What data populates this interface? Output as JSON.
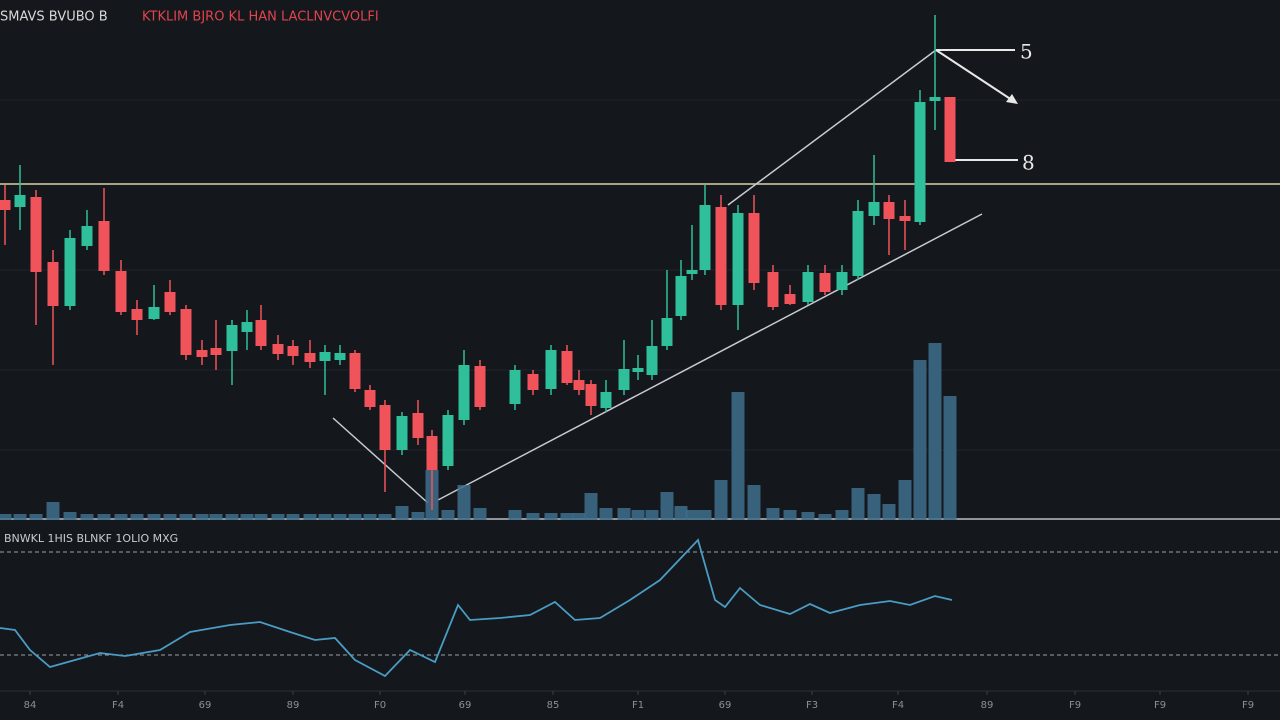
{
  "chart_data": {
    "type": "candlestick",
    "title": "SMAVS BVUBO B",
    "subtitle": "KTKLIM BJRO KL HAN LACLNVCVOLFI",
    "indicator_title": "BNWKL 1HIS BLNKF 1OLIO MXG",
    "annotations": [
      "5",
      "8"
    ],
    "up_color": "#2fbf9a",
    "down_color": "#f0535a",
    "volume_color": "#3e6e8c",
    "indicator_color": "#4a9cc4",
    "xlim": [
      0,
      1280
    ],
    "ylim": [
      0,
      520
    ],
    "x": [
      5,
      20,
      36,
      53,
      70,
      87,
      104,
      121,
      137,
      154,
      170,
      186,
      202,
      216,
      232,
      247,
      261,
      278,
      293,
      310,
      325,
      340,
      355,
      370,
      385,
      402,
      418,
      432,
      448,
      464,
      480,
      515,
      533,
      551,
      567,
      579,
      591,
      606,
      624,
      638,
      652,
      667,
      681,
      692,
      705,
      721,
      738,
      754,
      773,
      790,
      808,
      825,
      842,
      858,
      874,
      889,
      905,
      920,
      935,
      950
    ],
    "open": [
      320,
      313,
      323,
      258,
      214,
      274,
      299,
      249,
      211,
      201,
      228,
      211,
      170,
      172,
      169,
      188,
      200,
      176,
      174,
      167,
      159,
      160,
      167,
      130,
      115,
      70,
      107,
      84,
      54,
      100,
      154,
      116,
      146,
      131,
      169,
      140,
      136,
      112,
      130,
      148,
      145,
      174,
      204,
      246,
      250,
      313,
      215,
      307,
      248,
      226,
      218,
      247,
      230,
      244,
      304,
      318,
      304,
      298,
      419,
      423
    ],
    "high": [
      335,
      355,
      330,
      270,
      290,
      310,
      332,
      260,
      220,
      235,
      240,
      215,
      180,
      200,
      200,
      210,
      215,
      185,
      180,
      180,
      175,
      175,
      170,
      135,
      120,
      108,
      120,
      90,
      110,
      170,
      160,
      155,
      150,
      175,
      175,
      150,
      140,
      140,
      180,
      165,
      200,
      250,
      260,
      295,
      335,
      325,
      315,
      325,
      255,
      235,
      255,
      255,
      255,
      320,
      365,
      325,
      320,
      430,
      505,
      423
    ],
    "low": [
      275,
      290,
      195,
      155,
      210,
      270,
      245,
      205,
      185,
      200,
      205,
      160,
      155,
      150,
      135,
      170,
      170,
      160,
      155,
      152,
      125,
      155,
      128,
      110,
      28,
      65,
      75,
      10,
      50,
      95,
      110,
      110,
      125,
      125,
      135,
      125,
      105,
      108,
      125,
      140,
      140,
      170,
      200,
      240,
      245,
      210,
      190,
      230,
      210,
      215,
      215,
      225,
      225,
      240,
      295,
      265,
      270,
      295,
      390,
      358
    ],
    "close": [
      310,
      325,
      248,
      214,
      282,
      294,
      249,
      208,
      200,
      213,
      208,
      165,
      163,
      165,
      195,
      198,
      174,
      166,
      164,
      158,
      168,
      167,
      131,
      113,
      70,
      104,
      82,
      50,
      105,
      155,
      113,
      150,
      130,
      170,
      137,
      130,
      114,
      128,
      151,
      152,
      174,
      202,
      244,
      250,
      315,
      215,
      307,
      237,
      213,
      216,
      248,
      228,
      248,
      309,
      318,
      301,
      299,
      418,
      423,
      358
    ],
    "volume": [
      6,
      6,
      6,
      18,
      8,
      6,
      6,
      6,
      6,
      6,
      6,
      6,
      6,
      6,
      6,
      6,
      6,
      6,
      6,
      6,
      6,
      6,
      6,
      6,
      6,
      14,
      8,
      50,
      10,
      35,
      12,
      10,
      7,
      7,
      7,
      7,
      27,
      12,
      12,
      10,
      10,
      28,
      14,
      10,
      10,
      40,
      128,
      35,
      12,
      10,
      8,
      6,
      10,
      32,
      26,
      16,
      40,
      160,
      177,
      124
    ],
    "indicator": {
      "ylim": [
        0,
        170
      ],
      "levels": [
        138,
        35
      ],
      "x": [
        0,
        15,
        30,
        50,
        75,
        100,
        125,
        160,
        190,
        230,
        260,
        290,
        315,
        335,
        355,
        385,
        410,
        435,
        458,
        470,
        500,
        530,
        555,
        575,
        600,
        630,
        660,
        698,
        715,
        725,
        740,
        760,
        790,
        810,
        830,
        860,
        890,
        910,
        935,
        952
      ],
      "values": [
        62,
        60,
        40,
        23,
        30,
        37,
        34,
        40,
        58,
        65,
        68,
        58,
        50,
        52,
        30,
        14,
        40,
        28,
        85,
        70,
        72,
        75,
        88,
        70,
        72,
        90,
        110,
        150,
        90,
        83,
        102,
        85,
        76,
        86,
        77,
        85,
        89,
        85,
        94,
        90
      ]
    },
    "xticks": [
      {
        "value": 30,
        "label": "84"
      },
      {
        "value": 118,
        "label": "F4"
      },
      {
        "value": 205,
        "label": "69"
      },
      {
        "value": 293,
        "label": "89"
      },
      {
        "value": 380,
        "label": "F0"
      },
      {
        "value": 465,
        "label": "69"
      },
      {
        "value": 553,
        "label": "85"
      },
      {
        "value": 638,
        "label": "F1"
      },
      {
        "value": 725,
        "label": "69"
      },
      {
        "value": 812,
        "label": "F3"
      },
      {
        "value": 898,
        "label": "F4"
      },
      {
        "value": 987,
        "label": "89"
      },
      {
        "value": 1075,
        "label": "F9"
      },
      {
        "value": 1160,
        "label": "F9"
      },
      {
        "value": 1248,
        "label": "F9"
      }
    ]
  }
}
